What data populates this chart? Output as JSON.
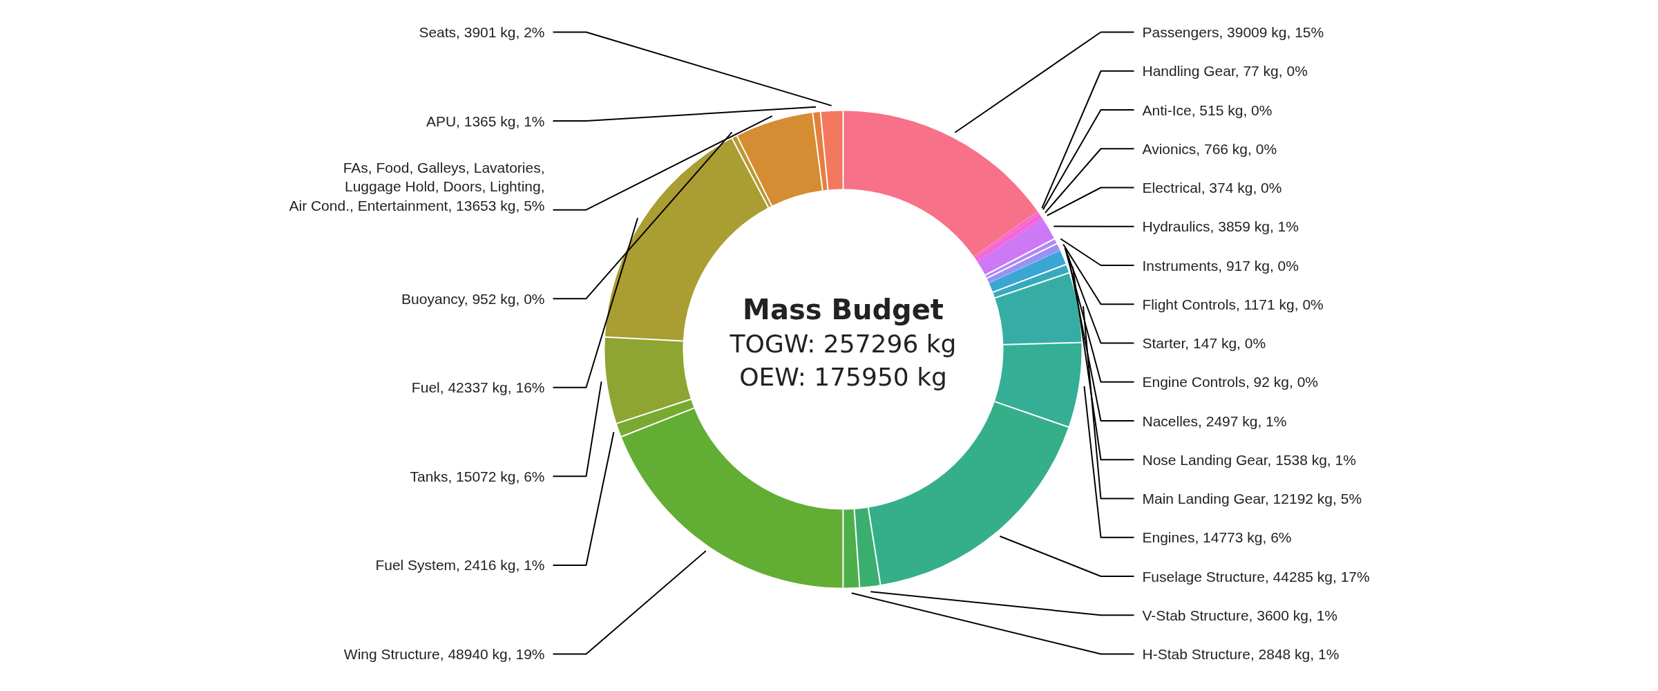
{
  "chart_data": {
    "type": "donut",
    "title": "Mass Budget",
    "annotations": [
      "TOGW: 257296 kg",
      "OEW: 175950 kg"
    ],
    "categories": [
      "Passengers",
      "Handling Gear",
      "Anti-Ice",
      "Avionics",
      "Electrical",
      "Hydraulics",
      "Instruments",
      "Flight Controls",
      "Starter",
      "Engine Controls",
      "Nacelles",
      "Nose Landing Gear",
      "Main Landing Gear",
      "Engines",
      "Fuselage Structure",
      "V-Stab Structure",
      "H-Stab Structure",
      "Wing Structure",
      "Fuel System",
      "Tanks",
      "Fuel",
      "Buoyancy",
      "FAs, Food, Galleys, Lavatories,\nLuggage Hold, Doors, Lighting,\nAir Cond., Entertainment",
      "APU",
      "Seats"
    ],
    "values": [
      39009,
      77,
      515,
      766,
      374,
      3859,
      917,
      1171,
      147,
      92,
      2497,
      1538,
      12192,
      14773,
      44285,
      3600,
      2848,
      48940,
      2416,
      15072,
      42337,
      952,
      13653,
      1365,
      3901
    ],
    "value_labels": [
      "39009 kg, 15%",
      "77 kg, 0%",
      "515 kg, 0%",
      "766 kg, 0%",
      "374 kg, 0%",
      "3859 kg, 1%",
      "917 kg, 0%",
      "1171 kg, 0%",
      "147 kg, 0%",
      "92 kg, 0%",
      "2497 kg, 1%",
      "1538 kg, 1%",
      "12192 kg, 5%",
      "14773 kg, 6%",
      "44285 kg, 17%",
      "3600 kg, 1%",
      "2848 kg, 1%",
      "48940 kg, 19%",
      "2416 kg, 1%",
      "15072 kg, 6%",
      "42337 kg, 16%",
      "952 kg, 0%",
      "13653 kg, 5%",
      "1365 kg, 1%",
      "3901 kg, 2%"
    ],
    "colors": [
      "#f77189",
      "#f66dad",
      "#f66bc4",
      "#f564d4",
      "#e766e8",
      "#cd78f4",
      "#b386f4",
      "#9a8ff4",
      "#7b98f2",
      "#4ca0ea",
      "#39a6d4",
      "#37a9bd",
      "#36ada4",
      "#35ae96",
      "#34af8a",
      "#3aae6f",
      "#4daf4a",
      "#62ad33",
      "#78aa31",
      "#8ea531",
      "#aa9d32",
      "#bc9731",
      "#d58c32",
      "#e3803f",
      "#f3785f"
    ]
  }
}
